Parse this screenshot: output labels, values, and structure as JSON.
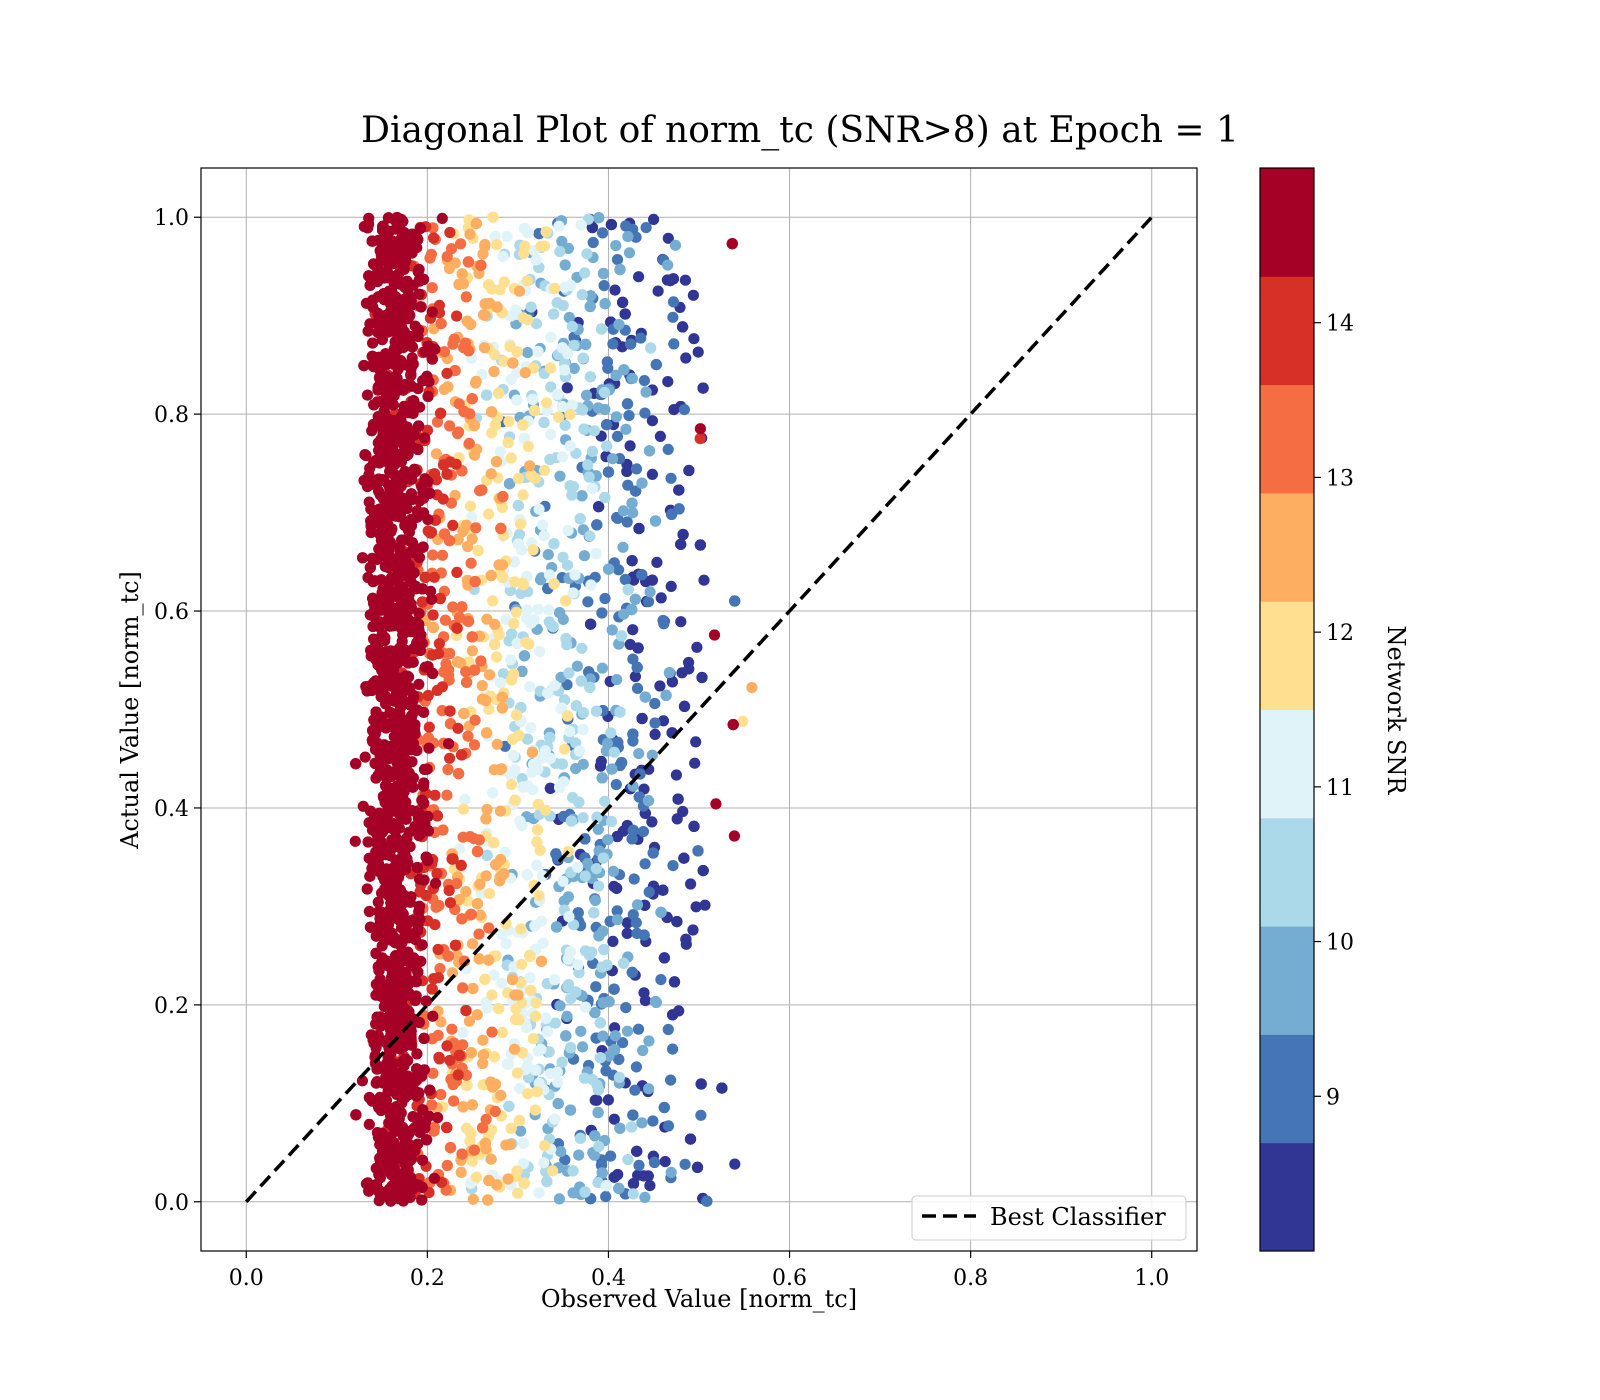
{
  "chart_data": {
    "type": "scatter",
    "title": "Diagonal Plot of norm_tc (SNR>8) at Epoch = 1",
    "xlabel": "Observed Value [norm_tc]",
    "ylabel": "Actual Value [norm_tc]",
    "xlim": [
      -0.05,
      1.05
    ],
    "ylim": [
      -0.05,
      1.05
    ],
    "xticks": [
      "0.0",
      "0.2",
      "0.4",
      "0.6",
      "0.8",
      "1.0"
    ],
    "yticks": [
      "0.0",
      "0.2",
      "0.4",
      "0.6",
      "0.8",
      "1.0"
    ],
    "grid": true,
    "reference_line": {
      "label": "Best Classifier",
      "x": [
        0,
        1
      ],
      "y": [
        0,
        1
      ],
      "style": "dashed",
      "color": "#000000"
    },
    "legend": {
      "placement": "lower right",
      "entries": [
        "Best Classifier"
      ]
    },
    "colorbar": {
      "label": "Network SNR",
      "range": [
        8,
        15
      ],
      "ticks": [
        "9",
        "10",
        "11",
        "12",
        "13",
        "14"
      ],
      "colors": [
        "#313695",
        "#4575b4",
        "#74add1",
        "#abd9e9",
        "#e0f3f8",
        "#fee090",
        "#fdae61",
        "#f46d43",
        "#d73027",
        "#a50026"
      ]
    },
    "scatter_summary": {
      "x_range": [
        0.1,
        0.57
      ],
      "y_range": [
        0.0,
        1.0
      ],
      "description_bands": [
        {
          "snr_min": 14.3,
          "x_center": 0.15,
          "x_spread": 0.035
        },
        {
          "snr_min": 12.0,
          "x_center": 0.26,
          "x_spread": 0.06
        },
        {
          "snr_min": 10.5,
          "x_center": 0.36,
          "x_spread": 0.07
        },
        {
          "snr_min": 8.0,
          "x_center": 0.44,
          "x_spread": 0.05
        }
      ]
    }
  }
}
